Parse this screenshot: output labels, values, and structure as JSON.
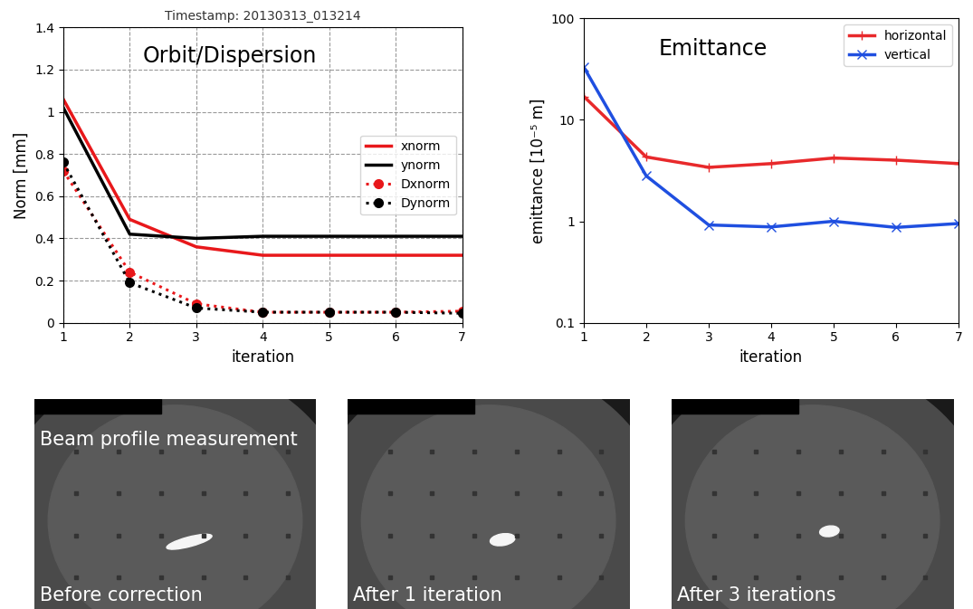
{
  "chart_data": [
    {
      "type": "line",
      "title": "Timestamp: 20130313_013214",
      "annotations": [
        "Orbit/Dispersion"
      ],
      "x_label": "iteration",
      "y_label": "Norm [mm]",
      "x": [
        1,
        2,
        3,
        4,
        5,
        6,
        7
      ],
      "xlim": [
        1,
        7
      ],
      "xticks": [
        1,
        2,
        3,
        4,
        5,
        6,
        7
      ],
      "ylim": [
        0,
        1.4
      ],
      "yticks": [
        0,
        0.2,
        0.4,
        0.6,
        0.8,
        1,
        1.2,
        1.4
      ],
      "grid": true,
      "legend": "center right",
      "series": [
        {
          "name": "xnorm",
          "color": "#e8181b",
          "line_style": "solid",
          "marker": "none",
          "values": [
            1.06,
            0.49,
            0.36,
            0.32,
            0.32,
            0.32,
            0.32
          ]
        },
        {
          "name": "ynorm",
          "color": "#000000",
          "line_style": "solid",
          "marker": "none",
          "values": [
            1.02,
            0.42,
            0.4,
            0.41,
            0.41,
            0.41,
            0.41
          ]
        },
        {
          "name": "Dxnorm",
          "color": "#e8181b",
          "line_style": "dotted",
          "marker": "o",
          "values": [
            0.72,
            0.24,
            0.09,
            0.05,
            0.05,
            0.05,
            0.055
          ]
        },
        {
          "name": "Dynorm",
          "color": "#000000",
          "line_style": "dotted",
          "marker": "o",
          "values": [
            0.76,
            0.19,
            0.07,
            0.05,
            0.05,
            0.05,
            0.045
          ]
        }
      ]
    },
    {
      "type": "line",
      "annotations": [
        "Emittance"
      ],
      "x_label": "iteration",
      "y_label": "emittance [10⁻⁵ m]",
      "x": [
        1,
        2,
        3,
        4,
        5,
        6,
        7
      ],
      "xlim": [
        1,
        7
      ],
      "xticks": [
        1,
        2,
        3,
        4,
        5,
        6,
        7
      ],
      "log": "y",
      "ylim": [
        0.1,
        100
      ],
      "yticks": [
        0.1,
        1,
        10,
        100
      ],
      "grid": false,
      "legend": "upper right",
      "series": [
        {
          "name": "horizontal",
          "color": "#e8292b",
          "line_style": "solid",
          "marker": "+",
          "values": [
            17,
            4.3,
            3.4,
            3.7,
            4.2,
            4.0,
            3.7
          ]
        },
        {
          "name": "vertical",
          "color": "#1f4fe0",
          "line_style": "solid",
          "marker": "x",
          "values": [
            33,
            2.8,
            0.92,
            0.88,
            1.0,
            0.87,
            0.95
          ]
        }
      ]
    }
  ],
  "images": {
    "title": "Beam profile measurement",
    "panels": [
      {
        "caption": "Before correction"
      },
      {
        "caption": "After 1 iteration"
      },
      {
        "caption": "After 3 iterations"
      }
    ]
  }
}
